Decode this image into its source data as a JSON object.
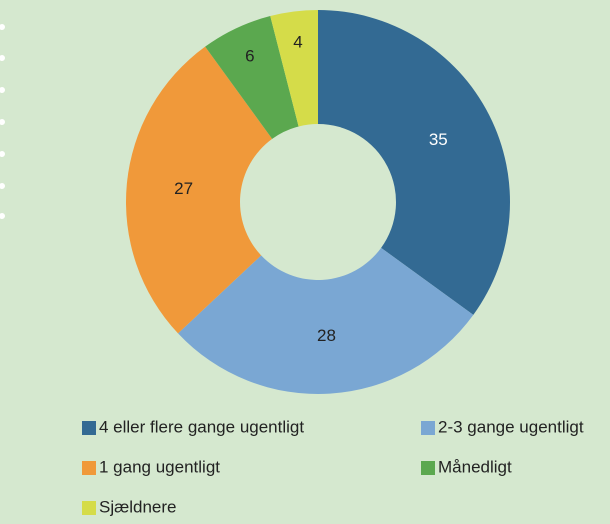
{
  "chart_data": {
    "type": "donut",
    "categories": [
      "4 eller flere gange ugentligt",
      "2-3 gange ugentligt",
      "1 gang ugentligt",
      "Månedligt",
      "Sjældnere"
    ],
    "values": [
      35,
      28,
      27,
      6,
      4
    ],
    "colors": [
      "#336a93",
      "#7aa7d3",
      "#f0993a",
      "#5ba84f",
      "#d5dc49"
    ]
  }
}
